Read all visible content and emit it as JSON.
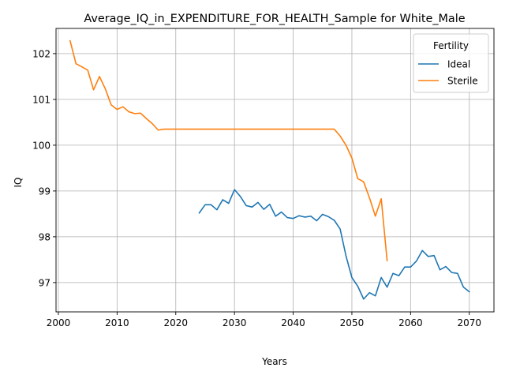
{
  "chart_data": {
    "type": "line",
    "title": "Average_IQ_in_EXPENDITURE_FOR_HEALTH_Sample for White_Male",
    "xlabel": "Years",
    "ylabel": "IQ",
    "xlim": [
      1999.6,
      2074.2
    ],
    "ylim": [
      96.36,
      102.55
    ],
    "xticks": [
      2000,
      2010,
      2020,
      2030,
      2040,
      2050,
      2060,
      2070
    ],
    "yticks": [
      97,
      98,
      99,
      100,
      101,
      102
    ],
    "grid": true,
    "legend": {
      "title": "Fertility",
      "placement": "top-right"
    },
    "series": [
      {
        "name": "Ideal",
        "color": "#1f77b4",
        "x": [
          2024,
          2025,
          2026,
          2027,
          2028,
          2029,
          2030,
          2031,
          2032,
          2033,
          2034,
          2035,
          2036,
          2037,
          2038,
          2039,
          2040,
          2041,
          2042,
          2043,
          2044,
          2045,
          2046,
          2047,
          2048,
          2049,
          2050,
          2051,
          2052,
          2053,
          2054,
          2055,
          2056,
          2057,
          2058,
          2059,
          2060,
          2061,
          2062,
          2063,
          2064,
          2065,
          2066,
          2067,
          2068,
          2069,
          2070
        ],
        "y": [
          98.52,
          98.7,
          98.7,
          98.59,
          98.81,
          98.73,
          99.03,
          98.88,
          98.68,
          98.65,
          98.75,
          98.6,
          98.71,
          98.45,
          98.54,
          98.42,
          98.4,
          98.46,
          98.43,
          98.45,
          98.35,
          98.49,
          98.44,
          98.36,
          98.17,
          97.58,
          97.11,
          96.92,
          96.64,
          96.78,
          96.71,
          97.11,
          96.9,
          97.2,
          97.15,
          97.34,
          97.34,
          97.47,
          97.7,
          97.57,
          97.59,
          97.28,
          97.35,
          97.22,
          97.2,
          96.9,
          96.8
        ]
      },
      {
        "name": "Sterile",
        "color": "#ff7f0e",
        "x": [
          2002,
          2003,
          2004,
          2005,
          2006,
          2007,
          2008,
          2009,
          2010,
          2011,
          2012,
          2013,
          2014,
          2015,
          2016,
          2017,
          2018,
          2019,
          2020,
          2021,
          2022,
          2023,
          2024,
          2025,
          2026,
          2027,
          2028,
          2029,
          2030,
          2031,
          2032,
          2033,
          2034,
          2035,
          2036,
          2037,
          2038,
          2039,
          2040,
          2041,
          2042,
          2043,
          2044,
          2045,
          2046,
          2047,
          2048,
          2049,
          2050,
          2051,
          2052,
          2053,
          2054,
          2055,
          2056
        ],
        "y": [
          102.28,
          101.78,
          101.71,
          101.64,
          101.21,
          101.5,
          101.23,
          100.88,
          100.78,
          100.84,
          100.73,
          100.69,
          100.7,
          100.58,
          100.47,
          100.33,
          100.35,
          100.35,
          100.35,
          100.35,
          100.35,
          100.35,
          100.35,
          100.35,
          100.35,
          100.35,
          100.35,
          100.35,
          100.35,
          100.35,
          100.35,
          100.35,
          100.35,
          100.35,
          100.35,
          100.35,
          100.35,
          100.35,
          100.35,
          100.35,
          100.35,
          100.35,
          100.35,
          100.35,
          100.35,
          100.35,
          100.2,
          100.0,
          99.72,
          99.27,
          99.2,
          98.85,
          98.45,
          98.83,
          97.48
        ]
      }
    ]
  }
}
